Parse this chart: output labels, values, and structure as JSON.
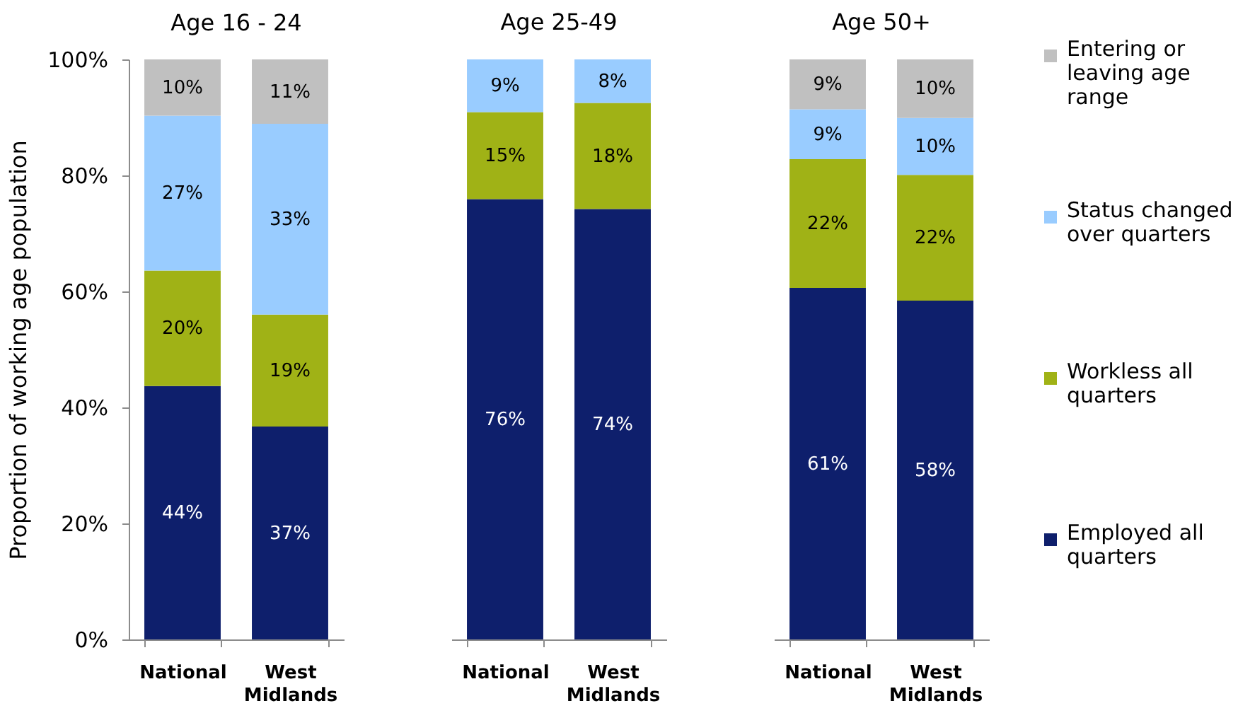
{
  "chart_data": [
    {
      "type": "bar",
      "title": "Age 16 - 24",
      "ylabel": "Proportion of working age population",
      "categories": [
        "National",
        "West Midlands"
      ],
      "stacked": true,
      "ylim": [
        0,
        100
      ],
      "yticks": [
        {
          "value": 0,
          "label": "0%"
        },
        {
          "value": 20,
          "label": "20%"
        },
        {
          "value": 40,
          "label": "40%"
        },
        {
          "value": 60,
          "label": "60%"
        },
        {
          "value": 80,
          "label": "80%"
        },
        {
          "value": 100,
          "label": "100%"
        }
      ],
      "legend": "right",
      "series": [
        {
          "name": "Employed all quarters",
          "color": "#0e1f6c",
          "values": [
            43.7,
            36.7
          ],
          "value_labels": [
            "44%",
            "37%"
          ]
        },
        {
          "name": "Workless all quarters",
          "color": "#a0b216",
          "values": [
            19.9,
            19.3
          ],
          "value_labels": [
            "20%",
            "19%"
          ]
        },
        {
          "name": "Status changed over quarters",
          "color": "#99ccff",
          "values": [
            26.7,
            32.9
          ],
          "value_labels": [
            "27%",
            "33%"
          ]
        },
        {
          "name": "Entering or leaving age range",
          "color": "#c0c0c0",
          "values": [
            9.7,
            11.1
          ],
          "value_labels": [
            "10%",
            "11%"
          ]
        }
      ]
    },
    {
      "type": "bar",
      "title": "Age 25-49",
      "categories": [
        "National",
        "West Midlands"
      ],
      "stacked": true,
      "ylim": [
        0,
        100
      ],
      "tick_labels": "x",
      "legend": "right",
      "series": [
        {
          "name": "Employed all quarters",
          "color": "#0e1f6c",
          "values": [
            75.9,
            74.2
          ],
          "value_labels": [
            "76%",
            "74%"
          ]
        },
        {
          "name": "Workless all quarters",
          "color": "#a0b216",
          "values": [
            15.0,
            18.3
          ],
          "value_labels": [
            "15%",
            "18%"
          ]
        },
        {
          "name": "Status changed over quarters",
          "color": "#99ccff",
          "values": [
            9.1,
            7.5
          ],
          "value_labels": [
            "9%",
            "8%"
          ]
        }
      ]
    },
    {
      "type": "bar",
      "title": "Age 50+",
      "categories": [
        "National",
        "West Midlands"
      ],
      "stacked": true,
      "ylim": [
        0,
        100
      ],
      "tick_labels": "x",
      "legend": "right",
      "series": [
        {
          "name": "Employed all quarters",
          "color": "#0e1f6c",
          "values": [
            60.6,
            58.4
          ],
          "value_labels": [
            "61%",
            "58%"
          ]
        },
        {
          "name": "Workless all quarters",
          "color": "#a0b216",
          "values": [
            22.2,
            21.7
          ],
          "value_labels": [
            "22%",
            "22%"
          ]
        },
        {
          "name": "Status changed over quarters",
          "color": "#99ccff",
          "values": [
            8.6,
            9.8
          ],
          "value_labels": [
            "9%",
            "10%"
          ]
        },
        {
          "name": "Entering or leaving age range",
          "color": "#c0c0c0",
          "values": [
            8.6,
            10.1
          ],
          "value_labels": [
            "9%",
            "10%"
          ]
        }
      ]
    }
  ]
}
